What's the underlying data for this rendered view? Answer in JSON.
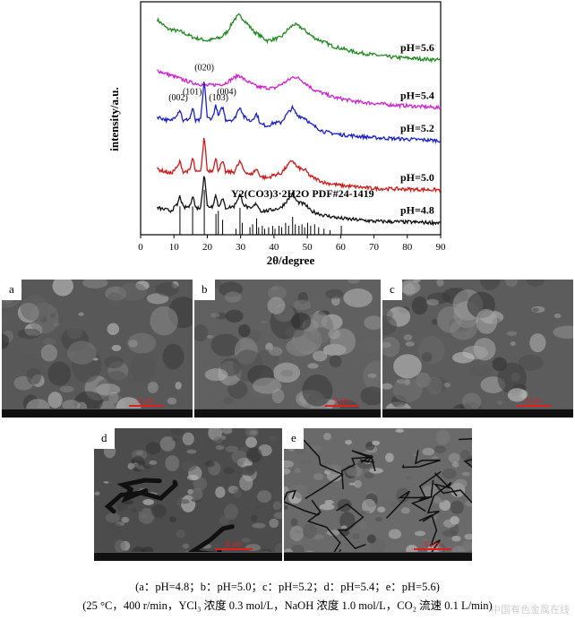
{
  "chart_data": {
    "type": "line",
    "xlabel": "2θ/degree",
    "ylabel": "intensity/a.u.",
    "xlim": [
      0,
      90
    ],
    "x_ticks": [
      0,
      10,
      20,
      30,
      40,
      50,
      60,
      70,
      80,
      90
    ],
    "series": [
      {
        "name": "pH=5.6",
        "color": "#1f8a1f",
        "points": [
          [
            5,
            7.6
          ],
          [
            8,
            7.3
          ],
          [
            12,
            7.2
          ],
          [
            16,
            7.0
          ],
          [
            20,
            6.9
          ],
          [
            24,
            7.0
          ],
          [
            26,
            7.2
          ],
          [
            28,
            7.6
          ],
          [
            29.5,
            7.75
          ],
          [
            31,
            7.6
          ],
          [
            34,
            7.2
          ],
          [
            38,
            6.9
          ],
          [
            42,
            7.0
          ],
          [
            44,
            7.25
          ],
          [
            46,
            7.45
          ],
          [
            48,
            7.35
          ],
          [
            52,
            7.0
          ],
          [
            58,
            6.7
          ],
          [
            65,
            6.5
          ],
          [
            75,
            6.35
          ],
          [
            90,
            6.25
          ]
        ]
      },
      {
        "name": "pH=5.4",
        "color": "#d020d0",
        "points": [
          [
            5,
            5.9
          ],
          [
            10,
            5.7
          ],
          [
            15,
            5.5
          ],
          [
            20,
            5.4
          ],
          [
            25,
            5.45
          ],
          [
            28,
            5.65
          ],
          [
            29.5,
            5.75
          ],
          [
            31,
            5.6
          ],
          [
            35,
            5.35
          ],
          [
            40,
            5.3
          ],
          [
            44,
            5.55
          ],
          [
            46,
            5.7
          ],
          [
            48,
            5.6
          ],
          [
            52,
            5.25
          ],
          [
            58,
            5.0
          ],
          [
            65,
            4.85
          ],
          [
            75,
            4.75
          ],
          [
            90,
            4.65
          ]
        ]
      },
      {
        "name": "pH=5.2",
        "color": "#1a20c8",
        "points": [
          [
            5,
            4.35
          ],
          [
            9,
            4.2
          ],
          [
            11,
            4.45
          ],
          [
            11.8,
            4.6
          ],
          [
            12.8,
            4.2
          ],
          [
            14.8,
            4.3
          ],
          [
            15.6,
            4.65
          ],
          [
            16.5,
            4.2
          ],
          [
            18,
            4.25
          ],
          [
            19.1,
            5.6
          ],
          [
            20,
            4.3
          ],
          [
            21.5,
            4.3
          ],
          [
            22.6,
            4.75
          ],
          [
            23.3,
            4.35
          ],
          [
            24.6,
            4.7
          ],
          [
            25.5,
            4.25
          ],
          [
            28,
            4.25
          ],
          [
            29.8,
            4.7
          ],
          [
            31,
            4.35
          ],
          [
            33,
            4.2
          ],
          [
            34.8,
            4.45
          ],
          [
            36,
            4.1
          ],
          [
            38,
            4.05
          ],
          [
            40,
            4.15
          ],
          [
            42,
            4.15
          ],
          [
            44,
            4.45
          ],
          [
            45.5,
            4.65
          ],
          [
            47,
            4.4
          ],
          [
            49.5,
            4.3
          ],
          [
            51,
            4.1
          ],
          [
            55,
            3.85
          ],
          [
            60,
            3.75
          ],
          [
            70,
            3.65
          ],
          [
            90,
            3.55
          ]
        ]
      },
      {
        "name": "pH=5.0",
        "color": "#d01818",
        "points": [
          [
            5,
            2.6
          ],
          [
            9,
            2.45
          ],
          [
            11,
            2.65
          ],
          [
            11.8,
            2.85
          ],
          [
            12.8,
            2.5
          ],
          [
            14.8,
            2.55
          ],
          [
            15.6,
            3.0
          ],
          [
            16.5,
            2.5
          ],
          [
            18,
            2.5
          ],
          [
            19.1,
            3.7
          ],
          [
            20,
            2.55
          ],
          [
            21.5,
            2.55
          ],
          [
            22.6,
            2.95
          ],
          [
            23.3,
            2.55
          ],
          [
            24.6,
            2.85
          ],
          [
            25.5,
            2.5
          ],
          [
            28,
            2.5
          ],
          [
            29.8,
            2.85
          ],
          [
            31,
            2.55
          ],
          [
            33,
            2.4
          ],
          [
            34.8,
            2.6
          ],
          [
            36,
            2.35
          ],
          [
            38,
            2.3
          ],
          [
            40,
            2.4
          ],
          [
            42,
            2.45
          ],
          [
            44,
            2.7
          ],
          [
            45.5,
            2.9
          ],
          [
            47,
            2.65
          ],
          [
            49.5,
            2.55
          ],
          [
            51,
            2.35
          ],
          [
            55,
            2.15
          ],
          [
            60,
            2.05
          ],
          [
            70,
            1.95
          ],
          [
            90,
            1.9
          ]
        ]
      },
      {
        "name": "pH=4.8",
        "color": "#111111",
        "points": [
          [
            5,
            1.3
          ],
          [
            9,
            1.2
          ],
          [
            11,
            1.4
          ],
          [
            11.8,
            1.7
          ],
          [
            12.8,
            1.3
          ],
          [
            14.8,
            1.35
          ],
          [
            15.6,
            1.75
          ],
          [
            16.5,
            1.3
          ],
          [
            18,
            1.3
          ],
          [
            19.1,
            2.5
          ],
          [
            20,
            1.35
          ],
          [
            21.5,
            1.35
          ],
          [
            22.6,
            1.75
          ],
          [
            23.3,
            1.35
          ],
          [
            24.6,
            1.6
          ],
          [
            25.5,
            1.3
          ],
          [
            28,
            1.35
          ],
          [
            29.8,
            1.75
          ],
          [
            31,
            1.4
          ],
          [
            33,
            1.25
          ],
          [
            34.8,
            1.45
          ],
          [
            36,
            1.2
          ],
          [
            38,
            1.2
          ],
          [
            40,
            1.25
          ],
          [
            42,
            1.3
          ],
          [
            44,
            1.55
          ],
          [
            45.5,
            1.75
          ],
          [
            47,
            1.5
          ],
          [
            49.5,
            1.4
          ],
          [
            51,
            1.2
          ],
          [
            55,
            1.05
          ],
          [
            60,
            0.95
          ],
          [
            70,
            0.85
          ],
          [
            90,
            0.8
          ]
        ]
      }
    ],
    "reference": {
      "label": "Y2(CO3)3·2H2O PDF#24-1419",
      "lines": [
        {
          "x": 11.8,
          "h": 0.95
        },
        {
          "x": 15.6,
          "h": 0.95
        },
        {
          "x": 19.1,
          "h": 1.5
        },
        {
          "x": 22.6,
          "h": 0.7
        },
        {
          "x": 23.3,
          "h": 0.8
        },
        {
          "x": 24.6,
          "h": 0.5
        },
        {
          "x": 28.6,
          "h": 0.2
        },
        {
          "x": 29.8,
          "h": 0.9
        },
        {
          "x": 30.5,
          "h": 0.4
        },
        {
          "x": 32.8,
          "h": 0.25
        },
        {
          "x": 33.6,
          "h": 0.35
        },
        {
          "x": 34.8,
          "h": 0.55
        },
        {
          "x": 35.4,
          "h": 0.25
        },
        {
          "x": 36.5,
          "h": 0.3
        },
        {
          "x": 37.2,
          "h": 0.2
        },
        {
          "x": 38.4,
          "h": 0.25
        },
        {
          "x": 39.6,
          "h": 0.3
        },
        {
          "x": 40.3,
          "h": 0.2
        },
        {
          "x": 41.5,
          "h": 0.3
        },
        {
          "x": 42.3,
          "h": 0.25
        },
        {
          "x": 43.5,
          "h": 0.4
        },
        {
          "x": 44.4,
          "h": 0.3
        },
        {
          "x": 45.6,
          "h": 0.6
        },
        {
          "x": 46.4,
          "h": 0.35
        },
        {
          "x": 47.5,
          "h": 0.3
        },
        {
          "x": 48.4,
          "h": 0.35
        },
        {
          "x": 49.2,
          "h": 0.25
        },
        {
          "x": 50.1,
          "h": 0.4
        },
        {
          "x": 51.0,
          "h": 0.3
        },
        {
          "x": 52.2,
          "h": 0.35
        },
        {
          "x": 53.4,
          "h": 0.25
        },
        {
          "x": 55.0,
          "h": 0.2
        },
        {
          "x": 56.8,
          "h": 0.15
        },
        {
          "x": 60.2,
          "h": 0.3
        }
      ]
    },
    "peak_labels": [
      {
        "text": "(020)",
        "x": 19.1,
        "y": 5.9
      },
      {
        "text": "(101)",
        "x": 15.5,
        "y": 5.1
      },
      {
        "text": "(004)",
        "x": 25.8,
        "y": 5.1
      },
      {
        "text": "(002)",
        "x": 11.3,
        "y": 4.9
      },
      {
        "text": "(103)",
        "x": 23.4,
        "y": 4.9
      }
    ]
  },
  "sem_panels": [
    {
      "letter": "a",
      "scale": "5 µm",
      "bg": "#585858"
    },
    {
      "letter": "b",
      "scale": "5 µm",
      "bg": "#606060"
    },
    {
      "letter": "c",
      "scale": "5 µm",
      "bg": "#5c5c5c"
    },
    {
      "letter": "d",
      "scale": "5 µm",
      "bg": "#4c4c4c"
    },
    {
      "letter": "e",
      "scale": "5 µm",
      "bg": "#6a6a6a"
    }
  ],
  "caption": {
    "line1": "(a：pH=4.8；b：pH=5.0；c：pH=5.2；d：pH=5.4；e：pH=5.6)",
    "line2": "(25 °C，400 r/min，YCl₃ 浓度 0.3 mol/L，NaOH 浓度 1.0 mol/L，CO₂ 流速 0.1 L/min)"
  },
  "watermark": "中国有色金属在线"
}
